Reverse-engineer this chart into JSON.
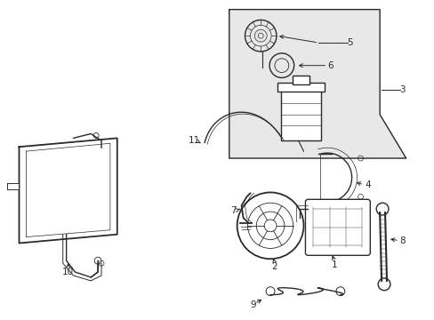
{
  "bg_color": "#ffffff",
  "line_color": "#2a2a2a",
  "box_bg": "#e8e8e8",
  "fig_width": 4.89,
  "fig_height": 3.6,
  "dpi": 100,
  "label_fs": 7.5,
  "lw_main": 1.0,
  "lw_thin": 0.6,
  "lw_thick": 1.4
}
